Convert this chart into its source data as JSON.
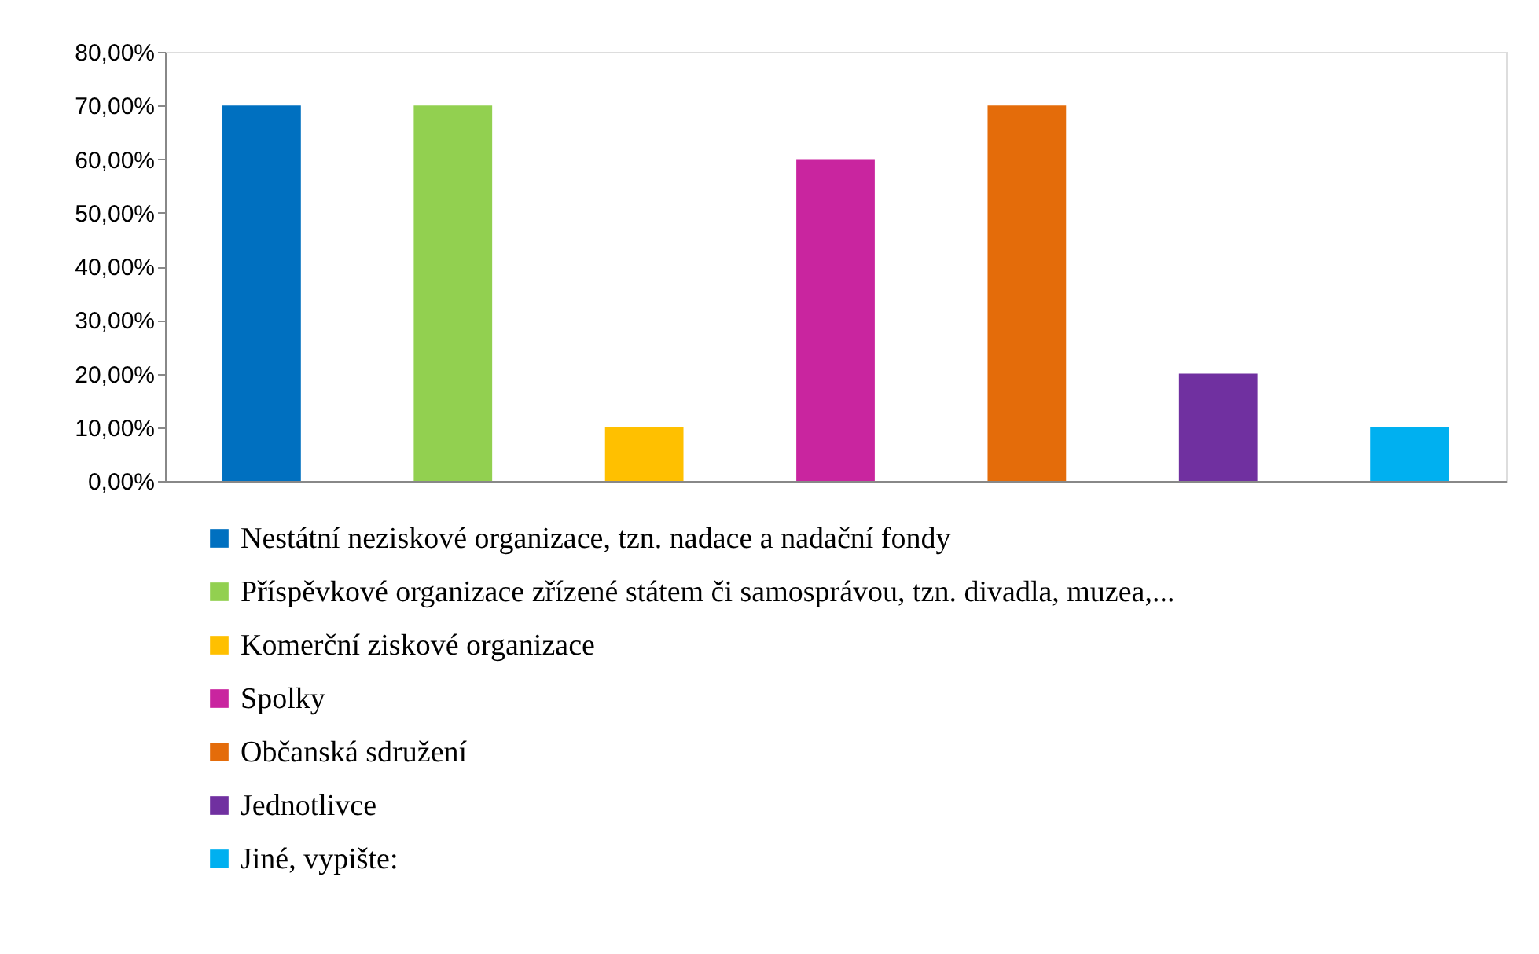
{
  "chart_data": {
    "type": "bar",
    "categories": [
      null,
      null,
      null,
      null,
      null,
      null,
      null
    ],
    "series": [
      {
        "name": "Nestátní neziskové organizace, tzn. nadace a nadační fondy",
        "color": "#0070c0",
        "values": [
          70,
          null,
          null,
          null,
          null,
          null,
          null
        ]
      },
      {
        "name": "Příspěvkové organizace zřízené státem či samosprávou, tzn. divadla, muzea,...",
        "color": "#92d050",
        "values": [
          null,
          70,
          null,
          null,
          null,
          null,
          null
        ]
      },
      {
        "name": "Komerční ziskové organizace",
        "color": "#ffc000",
        "values": [
          null,
          null,
          10,
          null,
          null,
          null,
          null
        ]
      },
      {
        "name": "Spolky",
        "color": "#c9259f",
        "values": [
          null,
          null,
          null,
          60,
          null,
          null,
          null
        ]
      },
      {
        "name": "Občanská sdružení",
        "color": "#e46c0a",
        "values": [
          null,
          null,
          null,
          null,
          70,
          null,
          null
        ]
      },
      {
        "name": "Jednotlivce",
        "color": "#7030a0",
        "values": [
          null,
          null,
          null,
          null,
          null,
          20,
          null
        ]
      },
      {
        "name": "Jiné, vypište:",
        "color": "#00b0f0",
        "values": [
          null,
          null,
          null,
          null,
          null,
          null,
          10
        ]
      }
    ],
    "ylim": [
      0,
      80
    ],
    "yticks": [
      {
        "value": 0,
        "label": "0,00%"
      },
      {
        "value": 10,
        "label": "10,00%"
      },
      {
        "value": 20,
        "label": "20,00%"
      },
      {
        "value": 30,
        "label": "30,00%"
      },
      {
        "value": 40,
        "label": "40,00%"
      },
      {
        "value": 50,
        "label": "50,00%"
      },
      {
        "value": 60,
        "label": "60,00%"
      },
      {
        "value": 70,
        "label": "70,00%"
      },
      {
        "value": 80,
        "label": "80,00%"
      }
    ],
    "tick_labels": "y",
    "grid": false,
    "legend": "bottom"
  }
}
